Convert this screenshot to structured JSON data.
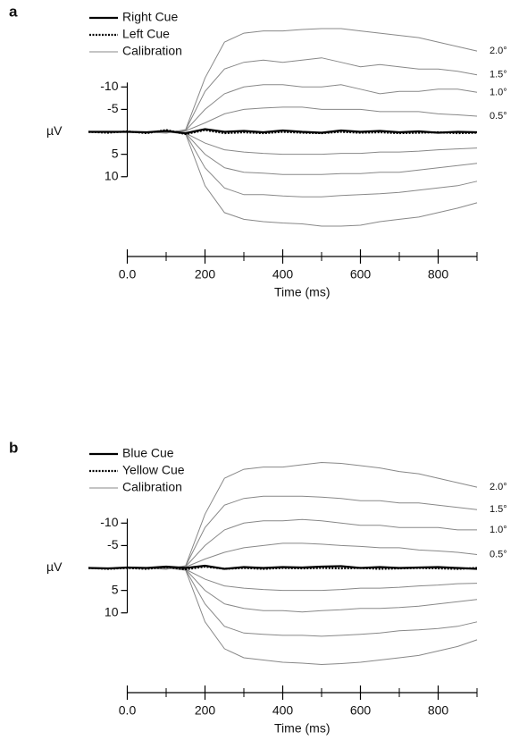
{
  "chart_data": [
    {
      "type": "line",
      "panel_label": "a",
      "xlabel": "Time (ms)",
      "ylabel": "µV",
      "x": [
        -100,
        -50,
        0,
        50,
        100,
        150,
        200,
        250,
        300,
        350,
        400,
        450,
        500,
        550,
        600,
        650,
        700,
        750,
        800,
        850,
        900
      ],
      "xlim": [
        -100,
        900
      ],
      "xticks": [
        {
          "value": 0,
          "label": "0.0"
        },
        200,
        400,
        600,
        800
      ],
      "xminorticks": [
        100,
        300,
        500,
        700,
        900
      ],
      "ylim": [
        22,
        -25
      ],
      "yticks": [
        -10,
        -5,
        5,
        10
      ],
      "series": [
        {
          "name": "Right Cue",
          "color": "#000000",
          "style": "solid",
          "values": [
            0,
            0,
            0,
            0.1,
            -0.2,
            0.3,
            -0.6,
            0,
            -0.2,
            0.1,
            -0.3,
            0,
            0.2,
            -0.3,
            0,
            -0.2,
            0.1,
            -0.1,
            0.2,
            0,
            0.1
          ]
        },
        {
          "name": "Left Cue",
          "color": "#000000",
          "style": "dotted",
          "values": [
            0,
            0.2,
            -0.1,
            0.3,
            -0.4,
            0.5,
            -0.4,
            0.3,
            0.1,
            0.3,
            0,
            0.2,
            0.3,
            0,
            0.2,
            0.1,
            0.3,
            0.2,
            0.1,
            0.3,
            0.2
          ]
        },
        {
          "name": "Calibration",
          "color": "#888888",
          "style": "thin",
          "lines": [
            {
              "label": "2.0°",
              "values": [
                0,
                0,
                0,
                0,
                0.3,
                -0.5,
                -12,
                -20,
                -22,
                -22.5,
                -22.5,
                -22.8,
                -23,
                -23,
                -22.5,
                -22,
                -21.5,
                -21,
                -20,
                -19,
                -18
              ]
            },
            {
              "label": "1.5°",
              "values": [
                0,
                0,
                0,
                0,
                0.2,
                -0.4,
                -9,
                -14,
                -15.5,
                -16,
                -15.5,
                -16,
                -16.5,
                -15.5,
                -14.5,
                -15,
                -14.5,
                -14,
                -14,
                -13.5,
                -12.7
              ]
            },
            {
              "label": "1.0°",
              "values": [
                0,
                0,
                0,
                0,
                0.1,
                -0.3,
                -5,
                -8.5,
                -10,
                -10.5,
                -10.5,
                -10,
                -10,
                -10.5,
                -9.5,
                -8.5,
                -9,
                -9,
                -9.5,
                -9.5,
                -8.8
              ]
            },
            {
              "label": "0.5°",
              "values": [
                0,
                0,
                0,
                0,
                0,
                -0.2,
                -2,
                -4,
                -5,
                -5.3,
                -5.5,
                -5.5,
                -5,
                -5,
                -5,
                -4.5,
                -4.5,
                -4.5,
                -4,
                -3.8,
                -3.5
              ]
            },
            {
              "values": [
                0,
                0,
                0,
                0,
                0,
                0.3,
                2.5,
                4,
                4.5,
                4.8,
                5,
                5,
                5,
                4.8,
                4.8,
                4.5,
                4.5,
                4.3,
                4,
                3.8,
                3.6
              ]
            },
            {
              "values": [
                0,
                0,
                0,
                0,
                0,
                0.3,
                5,
                8,
                9,
                9.2,
                9.5,
                9.5,
                9.5,
                9.3,
                9.3,
                9,
                9,
                8.5,
                8,
                7.5,
                7
              ]
            },
            {
              "values": [
                0,
                0,
                0,
                0,
                0,
                0.4,
                8,
                12.5,
                14,
                14,
                14.3,
                14.5,
                14.5,
                14.2,
                14,
                13.8,
                13.5,
                13,
                12.5,
                12,
                11
              ]
            },
            {
              "values": [
                0,
                0,
                0,
                0,
                0,
                0.5,
                12,
                18,
                19.5,
                20,
                20.3,
                20.5,
                21,
                21,
                20.8,
                20,
                19.5,
                19,
                18,
                17,
                15.8
              ]
            }
          ]
        }
      ]
    },
    {
      "type": "line",
      "panel_label": "b",
      "xlabel": "Time (ms)",
      "ylabel": "µV",
      "x": [
        -100,
        -50,
        0,
        50,
        100,
        150,
        200,
        250,
        300,
        350,
        400,
        450,
        500,
        550,
        600,
        650,
        700,
        750,
        800,
        850,
        900
      ],
      "xlim": [
        -100,
        900
      ],
      "xticks": [
        {
          "value": 0,
          "label": "0.0"
        },
        200,
        400,
        600,
        800
      ],
      "xminorticks": [
        100,
        300,
        500,
        700,
        900
      ],
      "ylim": [
        22,
        -25
      ],
      "yticks": [
        -10,
        -5,
        5,
        10
      ],
      "series": [
        {
          "name": "Blue Cue",
          "color": "#000000",
          "style": "solid",
          "values": [
            0,
            0.1,
            -0.1,
            0,
            -0.3,
            0,
            -0.5,
            0.2,
            -0.2,
            0,
            -0.2,
            -0.1,
            -0.3,
            -0.4,
            0,
            -0.2,
            0,
            -0.1,
            -0.2,
            0,
            0.2
          ]
        },
        {
          "name": "Yellow Cue",
          "color": "#000000",
          "style": "dotted",
          "values": [
            0,
            0.2,
            0,
            0.2,
            -0.2,
            0.3,
            -0.3,
            0.2,
            0,
            0.2,
            0,
            0.1,
            0,
            0.1,
            0,
            0.2,
            0.1,
            0,
            0.1,
            0.2,
            0
          ]
        },
        {
          "name": "Calibration",
          "color": "#888888",
          "style": "thin",
          "lines": [
            {
              "label": "2.0°",
              "values": [
                0,
                0,
                0,
                0,
                0.3,
                -0.5,
                -12,
                -20,
                -22,
                -22.5,
                -22.5,
                -23,
                -23.5,
                -23.3,
                -22.8,
                -22.3,
                -21.5,
                -21,
                -20,
                -19,
                -18
              ]
            },
            {
              "label": "1.5°",
              "values": [
                0,
                0,
                0,
                0,
                0.2,
                -0.4,
                -9,
                -14,
                -15.5,
                -16,
                -16,
                -16,
                -15.8,
                -15.5,
                -15,
                -15,
                -14.5,
                -14.5,
                -14,
                -13.5,
                -13
              ]
            },
            {
              "label": "1.0°",
              "values": [
                0,
                0,
                0,
                0,
                0.1,
                -0.3,
                -5,
                -8.5,
                -10,
                -10.5,
                -10.5,
                -10.8,
                -10.5,
                -10,
                -9.5,
                -9.5,
                -9,
                -9,
                -9,
                -8.5,
                -8.5
              ]
            },
            {
              "label": "0.5°",
              "values": [
                0,
                0,
                0,
                0,
                0,
                -0.2,
                -2,
                -3.5,
                -4.5,
                -5,
                -5.5,
                -5.5,
                -5.3,
                -5,
                -4.8,
                -4.5,
                -4.5,
                -4,
                -3.8,
                -3.5,
                -3
              ]
            },
            {
              "values": [
                0,
                0,
                0,
                0,
                0,
                0.3,
                2.5,
                4,
                4.5,
                4.8,
                5,
                5,
                5,
                4.8,
                4.5,
                4.5,
                4.3,
                4,
                3.8,
                3.5,
                3.4
              ]
            },
            {
              "values": [
                0,
                0,
                0,
                0,
                0,
                0.3,
                5,
                8,
                9,
                9.5,
                9.5,
                9.8,
                9.5,
                9.3,
                9,
                9,
                8.8,
                8.5,
                8,
                7.5,
                7
              ]
            },
            {
              "values": [
                0,
                0,
                0,
                0,
                0,
                0.4,
                8,
                13,
                14.5,
                14.8,
                15,
                15,
                15.2,
                15,
                14.8,
                14.5,
                14,
                13.8,
                13.5,
                13,
                12
              ]
            },
            {
              "values": [
                0,
                0,
                0,
                0,
                0,
                0.5,
                12,
                18,
                20,
                20.5,
                21,
                21.2,
                21.5,
                21.3,
                21,
                20.5,
                20,
                19.5,
                18.5,
                17.5,
                16
              ]
            }
          ]
        }
      ]
    }
  ]
}
